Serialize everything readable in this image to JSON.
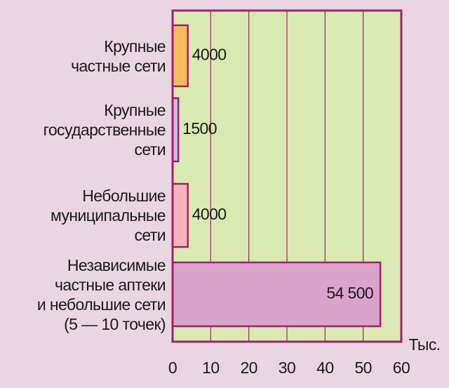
{
  "chart_data": {
    "type": "barh",
    "categories": [
      "Крупные\nчастные сети",
      "Крупные\nгосударственные\nсети",
      "Небольшие\nмуниципальные\nсети",
      "Независимые\nчастные аптеки\nи небольшие сети\n(5 — 10 точек)"
    ],
    "values": [
      4,
      1.5,
      4,
      54.5
    ],
    "value_labels": [
      "4000",
      "1500",
      "4000",
      "54 500"
    ],
    "colors": [
      "#f6bb5e",
      "#cbbde9",
      "#f6b3bb",
      "#d9a3cb"
    ],
    "xlabel": "Тыс.",
    "xlim": [
      0,
      60
    ],
    "xticks": [
      0,
      10,
      20,
      30,
      40,
      50,
      60
    ],
    "grid": true
  }
}
